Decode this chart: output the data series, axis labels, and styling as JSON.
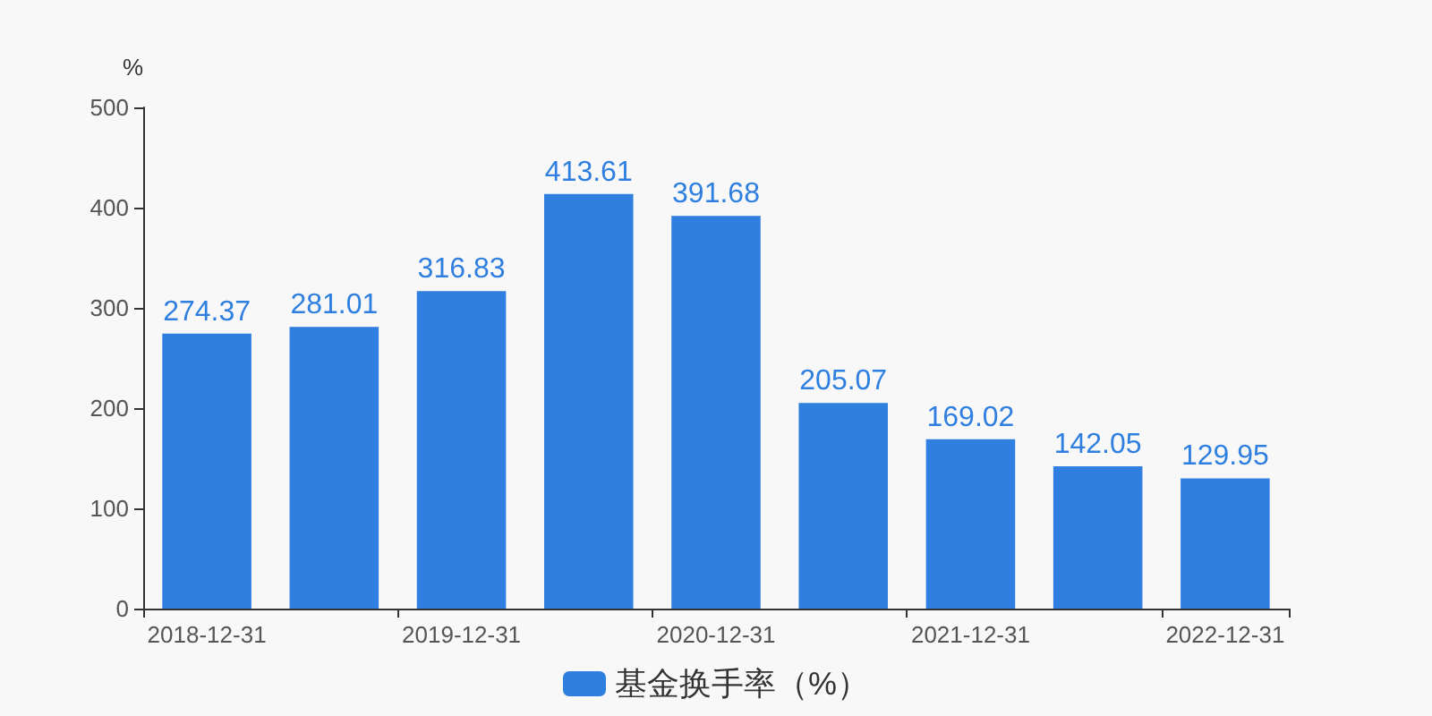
{
  "chart_data": {
    "type": "bar",
    "ylabel": "%",
    "categories": [
      "2018-12-31",
      null,
      "2019-12-31",
      null,
      "2020-12-31",
      null,
      "2021-12-31",
      null,
      "2022-12-31"
    ],
    "series": [
      {
        "name": "基金换手率（%）",
        "color": "#2e7fdf",
        "values": [
          274.37,
          281.01,
          316.83,
          413.61,
          391.68,
          205.07,
          169.02,
          142.05,
          129.95
        ]
      }
    ],
    "ylim": [
      0,
      500
    ],
    "yticks": [
      0,
      100,
      200,
      300,
      400,
      500
    ],
    "grid": false,
    "legend": "bottom",
    "data_labels": true
  }
}
